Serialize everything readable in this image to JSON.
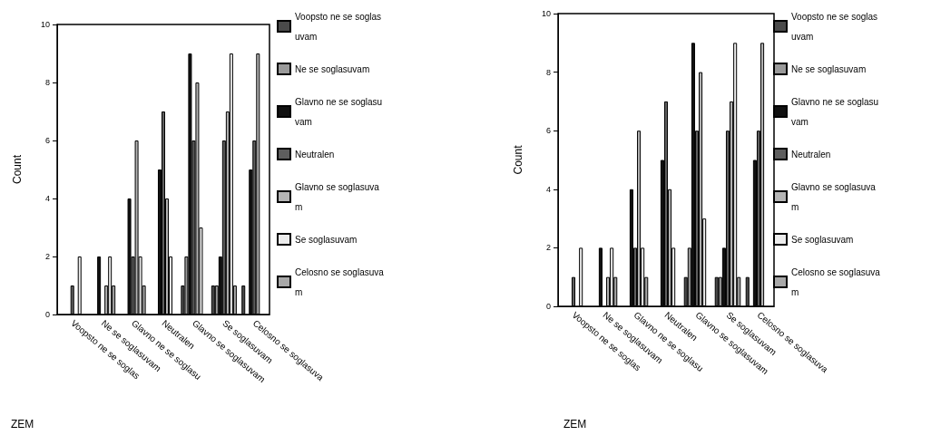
{
  "chart_data": [
    {
      "type": "bar",
      "xlabel": "ZEM",
      "ylabel": "Count",
      "categories": [
        "Voopsto ne se soglas",
        "Ne se soglasuvam",
        "Glavno ne se soglasu",
        "Neutralen",
        "Glavno se soglasuvam",
        "Se soglasuvam",
        "Celosno se soglasuva"
      ],
      "series": [
        {
          "name": "Voopsto ne se soglasuvam",
          "color": "#4a4a4a",
          "values": [
            0,
            0,
            0,
            0,
            1,
            1,
            1
          ]
        },
        {
          "name": "Ne se soglasuvam",
          "color": "#9a9a9a",
          "values": [
            0,
            0,
            0,
            0,
            2,
            1,
            0
          ]
        },
        {
          "name": "Glavno ne se soglasuvam",
          "color": "#111111",
          "values": [
            0,
            2,
            4,
            5,
            9,
            2,
            5
          ]
        },
        {
          "name": "Neutralen",
          "color": "#5e5e5e",
          "values": [
            1,
            0,
            2,
            7,
            6,
            6,
            6
          ]
        },
        {
          "name": "Glavno se soglasuvam",
          "color": "#b4b4b4",
          "values": [
            0,
            1,
            6,
            4,
            8,
            7,
            9
          ]
        },
        {
          "name": "Se soglasuvam",
          "color": "#ececec",
          "values": [
            2,
            2,
            2,
            2,
            3,
            9,
            0
          ]
        },
        {
          "name": "Celosno se soglasuvam",
          "color": "#a8a8a8",
          "values": [
            0,
            1,
            1,
            0,
            0,
            1,
            0
          ]
        }
      ],
      "ylim": [
        0,
        10
      ],
      "yticks": [
        0,
        2,
        4,
        6,
        8,
        10
      ],
      "grid": false,
      "legend": "right"
    },
    {
      "type": "bar",
      "xlabel": "ZEM",
      "ylabel": "Count",
      "categories": [
        "Voopsto ne se soglas",
        "Ne se soglasuvam",
        "Glavno ne se soglasu",
        "Neutralen",
        "Glavno se soglasuvam",
        "Se soglasuvam",
        "Celosno se soglasuva"
      ],
      "series": [
        {
          "name": "Voopsto ne se soglasuvam",
          "color": "#4a4a4a",
          "values": [
            0,
            0,
            0,
            0,
            1,
            1,
            1
          ]
        },
        {
          "name": "Ne se soglasuvam",
          "color": "#9a9a9a",
          "values": [
            0,
            0,
            0,
            0,
            2,
            1,
            0
          ]
        },
        {
          "name": "Glavno ne se soglasuvam",
          "color": "#111111",
          "values": [
            0,
            2,
            4,
            5,
            9,
            2,
            5
          ]
        },
        {
          "name": "Neutralen",
          "color": "#5e5e5e",
          "values": [
            1,
            0,
            2,
            7,
            6,
            6,
            6
          ]
        },
        {
          "name": "Glavno se soglasuvam",
          "color": "#b4b4b4",
          "values": [
            0,
            1,
            6,
            4,
            8,
            7,
            9
          ]
        },
        {
          "name": "Se soglasuvam",
          "color": "#ececec",
          "values": [
            2,
            2,
            2,
            2,
            3,
            9,
            0
          ]
        },
        {
          "name": "Celosno se soglasuvam",
          "color": "#a8a8a8",
          "values": [
            0,
            1,
            1,
            0,
            0,
            1,
            0
          ]
        }
      ],
      "ylim": [
        0,
        10
      ],
      "yticks": [
        0,
        2,
        4,
        6,
        8,
        10
      ],
      "grid": false,
      "legend": "right"
    }
  ]
}
